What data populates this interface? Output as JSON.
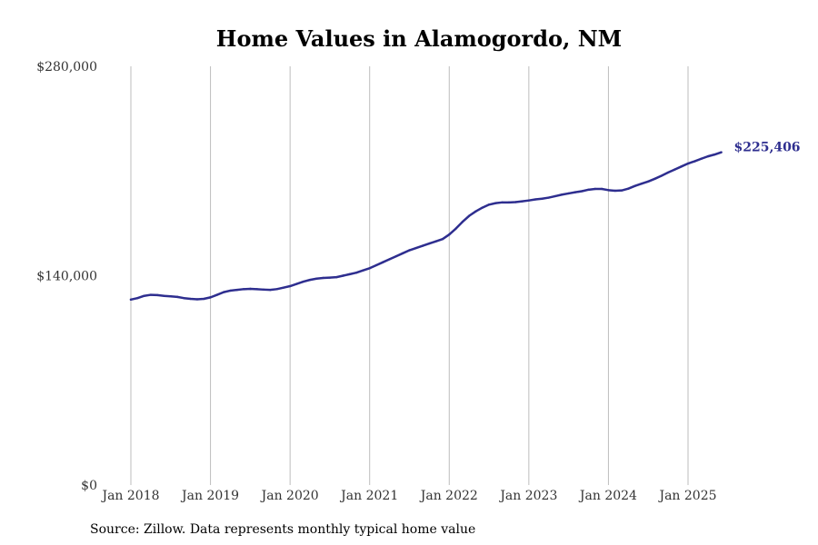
{
  "chart_data": {
    "type": "line",
    "title": "Home Values in Alamogordo, NM",
    "xlabel": "",
    "ylabel": "",
    "ylim": [
      0,
      280000
    ],
    "y_ticks": [
      {
        "value": 0,
        "label": "$0"
      },
      {
        "value": 140000,
        "label": "$140,000"
      },
      {
        "value": 280000,
        "label": "$280,000"
      }
    ],
    "x_ticks": [
      {
        "value": "2018-01",
        "label": "Jan 2018"
      },
      {
        "value": "2019-01",
        "label": "Jan 2019"
      },
      {
        "value": "2020-01",
        "label": "Jan 2020"
      },
      {
        "value": "2021-01",
        "label": "Jan 2021"
      },
      {
        "value": "2022-01",
        "label": "Jan 2022"
      },
      {
        "value": "2023-01",
        "label": "Jan 2023"
      },
      {
        "value": "2024-01",
        "label": "Jan 2024"
      },
      {
        "value": "2025-01",
        "label": "Jan 2025"
      }
    ],
    "grid": {
      "vertical": true,
      "horizontal": false
    },
    "series": [
      {
        "color": "#2e2e8f",
        "end_label": "$225,406",
        "points": [
          [
            "2018-01",
            124000
          ],
          [
            "2018-02",
            125000
          ],
          [
            "2018-03",
            126500
          ],
          [
            "2018-04",
            127200
          ],
          [
            "2018-05",
            127000
          ],
          [
            "2018-06",
            126500
          ],
          [
            "2018-07",
            126200
          ],
          [
            "2018-08",
            125800
          ],
          [
            "2018-09",
            125000
          ],
          [
            "2018-10",
            124500
          ],
          [
            "2018-11",
            124200
          ],
          [
            "2018-12",
            124500
          ],
          [
            "2019-01",
            125500
          ],
          [
            "2019-02",
            127200
          ],
          [
            "2019-03",
            129000
          ],
          [
            "2019-04",
            130000
          ],
          [
            "2019-05",
            130500
          ],
          [
            "2019-06",
            131000
          ],
          [
            "2019-07",
            131200
          ],
          [
            "2019-08",
            131000
          ],
          [
            "2019-09",
            130700
          ],
          [
            "2019-10",
            130500
          ],
          [
            "2019-11",
            131000
          ],
          [
            "2019-12",
            132000
          ],
          [
            "2020-01",
            133000
          ],
          [
            "2020-02",
            134500
          ],
          [
            "2020-03",
            136000
          ],
          [
            "2020-04",
            137200
          ],
          [
            "2020-05",
            138000
          ],
          [
            "2020-06",
            138500
          ],
          [
            "2020-07",
            138700
          ],
          [
            "2020-08",
            139000
          ],
          [
            "2020-09",
            140000
          ],
          [
            "2020-10",
            141000
          ],
          [
            "2020-11",
            142000
          ],
          [
            "2020-12",
            143500
          ],
          [
            "2021-01",
            145000
          ],
          [
            "2021-02",
            147000
          ],
          [
            "2021-03",
            149000
          ],
          [
            "2021-04",
            151000
          ],
          [
            "2021-05",
            153000
          ],
          [
            "2021-06",
            155000
          ],
          [
            "2021-07",
            157000
          ],
          [
            "2021-08",
            158500
          ],
          [
            "2021-09",
            160000
          ],
          [
            "2021-10",
            161500
          ],
          [
            "2021-11",
            163000
          ],
          [
            "2021-12",
            164500
          ],
          [
            "2022-01",
            167500
          ],
          [
            "2022-02",
            171500
          ],
          [
            "2022-03",
            176000
          ],
          [
            "2022-04",
            180000
          ],
          [
            "2022-05",
            183000
          ],
          [
            "2022-06",
            185500
          ],
          [
            "2022-07",
            187500
          ],
          [
            "2022-08",
            188500
          ],
          [
            "2022-09",
            189000
          ],
          [
            "2022-10",
            189000
          ],
          [
            "2022-11",
            189200
          ],
          [
            "2022-12",
            189700
          ],
          [
            "2023-01",
            190300
          ],
          [
            "2023-02",
            191000
          ],
          [
            "2023-03",
            191500
          ],
          [
            "2023-04",
            192200
          ],
          [
            "2023-05",
            193200
          ],
          [
            "2023-06",
            194200
          ],
          [
            "2023-07",
            195000
          ],
          [
            "2023-08",
            195800
          ],
          [
            "2023-09",
            196500
          ],
          [
            "2023-10",
            197500
          ],
          [
            "2023-11",
            198000
          ],
          [
            "2023-12",
            198000
          ],
          [
            "2024-01",
            197200
          ],
          [
            "2024-02",
            196800
          ],
          [
            "2024-03",
            197000
          ],
          [
            "2024-04",
            198200
          ],
          [
            "2024-05",
            200000
          ],
          [
            "2024-06",
            201500
          ],
          [
            "2024-07",
            203000
          ],
          [
            "2024-08",
            204800
          ],
          [
            "2024-09",
            206800
          ],
          [
            "2024-10",
            209000
          ],
          [
            "2024-11",
            211000
          ],
          [
            "2024-12",
            213000
          ],
          [
            "2025-01",
            215000
          ],
          [
            "2025-02",
            216500
          ],
          [
            "2025-03",
            218200
          ],
          [
            "2025-04",
            219800
          ],
          [
            "2025-05",
            221000
          ],
          [
            "2025-06",
            222500
          ]
        ]
      }
    ],
    "source_note": "Source: Zillow. Data represents monthly typical home value"
  }
}
